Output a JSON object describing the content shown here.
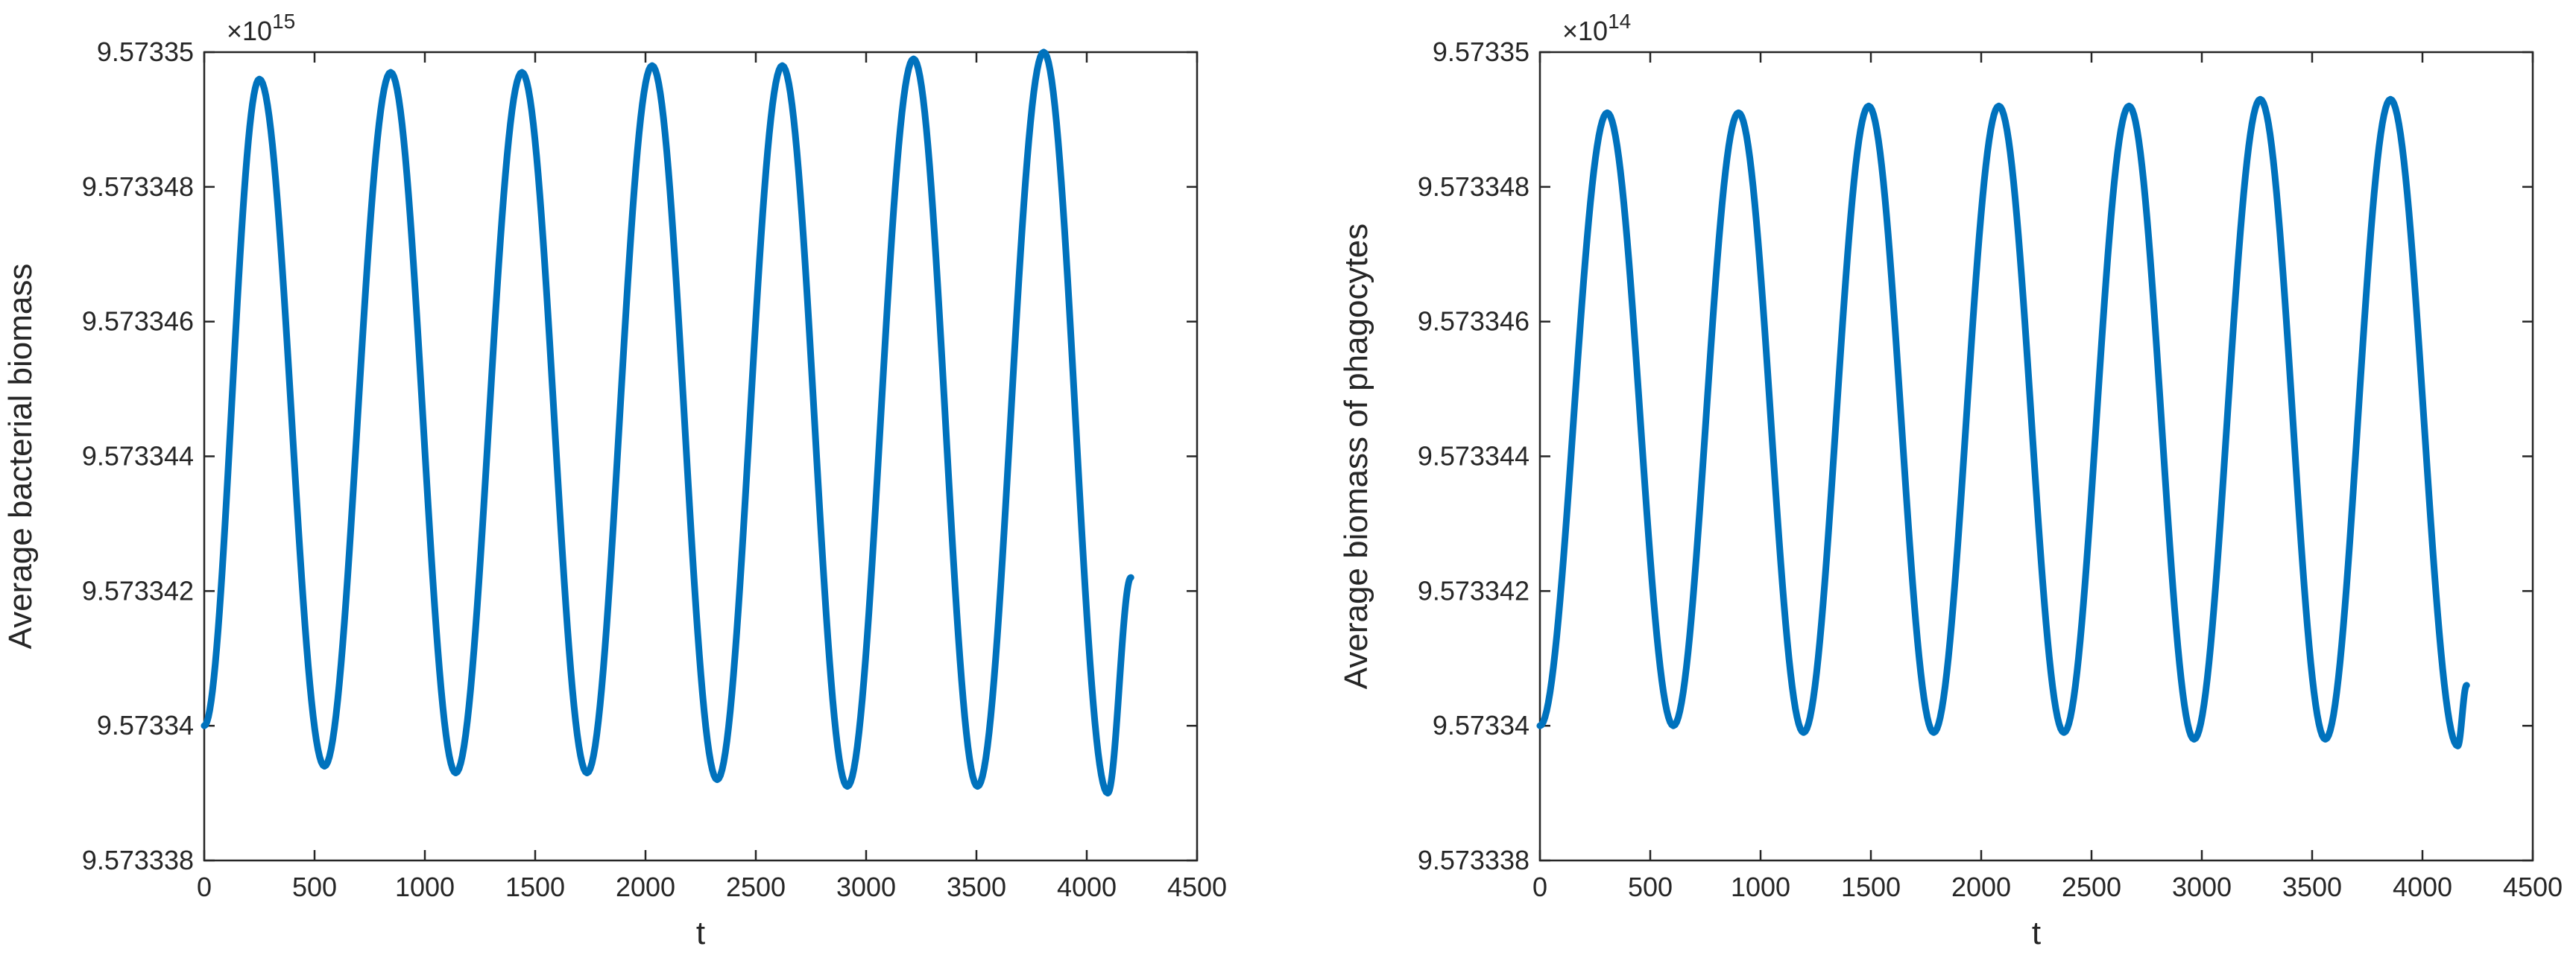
{
  "chart_data": [
    {
      "type": "line",
      "xlabel": "t",
      "ylabel": "Average bacterial biomass",
      "y_exponent_base": "×10",
      "y_exponent_power": "15",
      "xlim": [
        0,
        4500
      ],
      "ylim": [
        9.573338,
        9.57335
      ],
      "xticks": [
        "0",
        "500",
        "1000",
        "1500",
        "2000",
        "2500",
        "3000",
        "3500",
        "4000",
        "4500"
      ],
      "yticks": [
        "9.573338",
        "9.57334",
        "9.573342",
        "9.573344",
        "9.573346",
        "9.573348",
        "9.57335"
      ],
      "grid": false,
      "color": "#0072BD",
      "x": [
        0,
        250,
        545,
        845,
        1140,
        1440,
        1735,
        2030,
        2325,
        2620,
        2915,
        3215,
        3505,
        3805,
        4095,
        4200
      ],
      "y": [
        9.57334,
        9.5733496,
        9.5733394,
        9.5733497,
        9.5733393,
        9.5733497,
        9.5733393,
        9.5733498,
        9.5733392,
        9.5733498,
        9.5733391,
        9.5733499,
        9.5733391,
        9.57335,
        9.573339,
        9.5733422
      ]
    },
    {
      "type": "line",
      "xlabel": "t",
      "ylabel": "Average biomass of phagocytes",
      "y_exponent_base": "×10",
      "y_exponent_power": "14",
      "xlim": [
        0,
        4500
      ],
      "ylim": [
        9.573338,
        9.57335
      ],
      "xticks": [
        "0",
        "500",
        "1000",
        "1500",
        "2000",
        "2500",
        "3000",
        "3500",
        "4000",
        "4500"
      ],
      "yticks": [
        "9.573338",
        "9.57334",
        "9.573342",
        "9.573344",
        "9.573346",
        "9.573348",
        "9.57335"
      ],
      "grid": false,
      "color": "#0072BD",
      "x": [
        0,
        305,
        605,
        900,
        1195,
        1490,
        1785,
        2080,
        2375,
        2670,
        2965,
        3265,
        3560,
        3855,
        4160,
        4200
      ],
      "y": [
        9.57334,
        9.5733491,
        9.57334,
        9.5733491,
        9.5733399,
        9.5733492,
        9.5733399,
        9.5733492,
        9.5733399,
        9.5733492,
        9.5733398,
        9.5733493,
        9.5733398,
        9.5733493,
        9.5733397,
        9.5733406
      ]
    }
  ]
}
